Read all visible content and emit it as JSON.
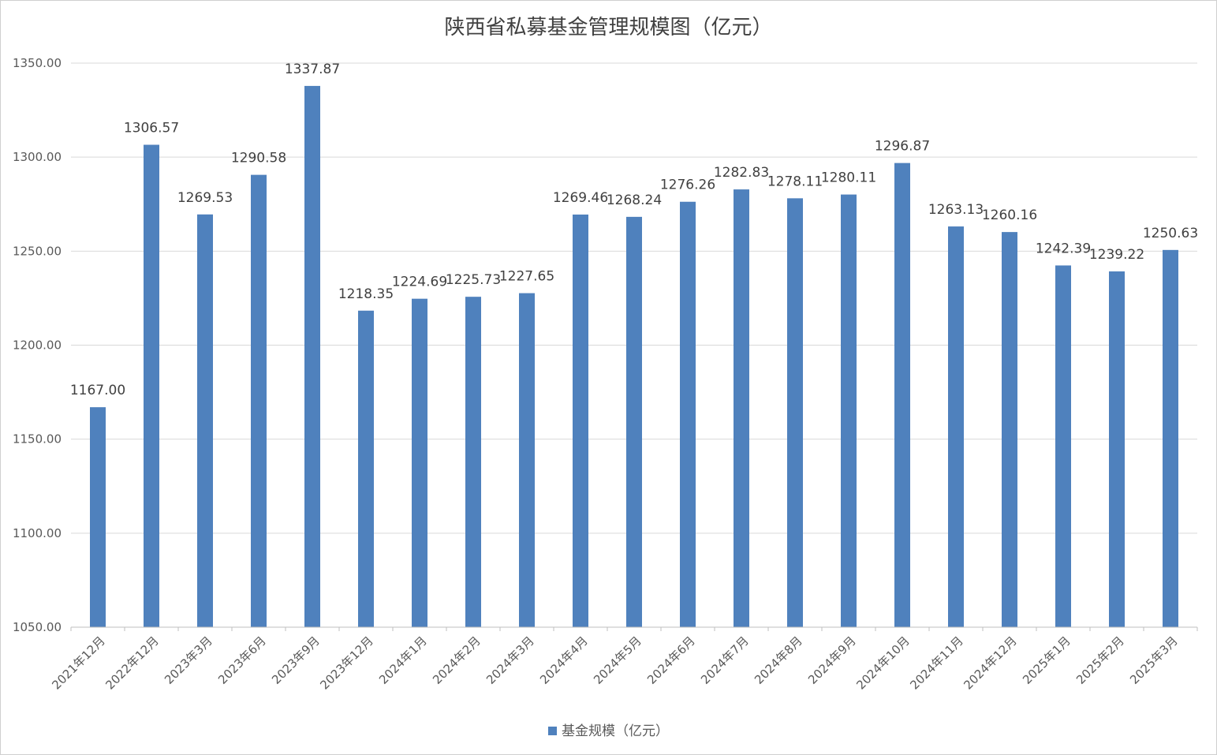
{
  "chart_data": {
    "type": "bar",
    "title": "陕西省私募基金管理规模图（亿元）",
    "categories": [
      "2021年12月",
      "2022年12月",
      "2023年3月",
      "2023年6月",
      "2023年9月",
      "2023年12月",
      "2024年1月",
      "2024年2月",
      "2024年3月",
      "2024年4月",
      "2024年5月",
      "2024年6月",
      "2024年7月",
      "2024年8月",
      "2024年9月",
      "2024年10月",
      "2024年11月",
      "2024年12月",
      "2025年1月",
      "2025年2月",
      "2025年3月"
    ],
    "series": [
      {
        "name": "基金规模（亿元）",
        "values": [
          1167.0,
          1306.57,
          1269.53,
          1290.58,
          1337.87,
          1218.35,
          1224.69,
          1225.73,
          1227.65,
          1269.46,
          1268.24,
          1276.26,
          1282.83,
          1278.11,
          1280.11,
          1296.87,
          1263.13,
          1260.16,
          1242.39,
          1239.22,
          1250.63
        ],
        "labels": [
          "1167.00",
          "1306.57",
          "1269.53",
          "1290.58",
          "1337.87",
          "1218.35",
          "1224.69",
          "1225.73",
          "1227.65",
          "1269.46",
          "1268.24",
          "1276.26",
          "1282.83",
          "1278.11",
          "1280.11",
          "1296.87",
          "1263.13",
          "1260.16",
          "1242.39",
          "1239.22",
          "1250.63"
        ],
        "color": "#4f81bd"
      }
    ],
    "yticks": [
      "1050.00",
      "1100.00",
      "1150.00",
      "1200.00",
      "1250.00",
      "1300.00",
      "1350.00"
    ],
    "ylim": [
      1050,
      1350
    ],
    "grid": true,
    "legend": "bottom-center"
  }
}
